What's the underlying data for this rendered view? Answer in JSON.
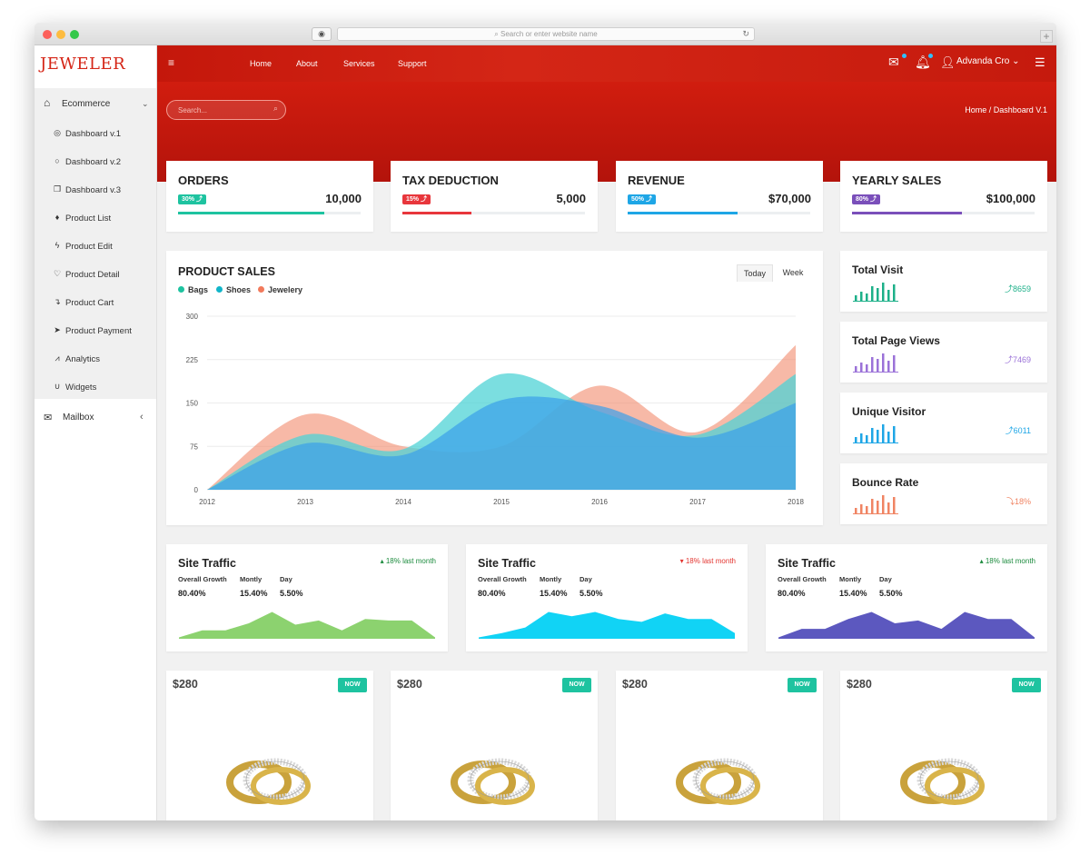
{
  "browser": {
    "url_placeholder": "Search or enter website name"
  },
  "brand": {
    "logo": "JEWELER",
    "accent": "#d42616"
  },
  "sidebar": {
    "group": {
      "label": "Ecommerce"
    },
    "items": [
      {
        "label": "Dashboard v.1",
        "icon": "target-icon"
      },
      {
        "label": "Dashboard v.2",
        "icon": "circle-icon"
      },
      {
        "label": "Dashboard v.3",
        "icon": "cube-icon"
      },
      {
        "label": "Product List",
        "icon": "diamond-icon"
      },
      {
        "label": "Product Edit",
        "icon": "bolt-icon"
      },
      {
        "label": "Product Detail",
        "icon": "heart-icon"
      },
      {
        "label": "Product Cart",
        "icon": "arrow-turn-icon"
      },
      {
        "label": "Product Payment",
        "icon": "send-icon"
      },
      {
        "label": "Analytics",
        "icon": "line-chart-icon"
      },
      {
        "label": "Widgets",
        "icon": "magnet-icon"
      }
    ],
    "mailbox": {
      "label": "Mailbox"
    }
  },
  "topnav": {
    "links": [
      "Home",
      "About",
      "Services",
      "Support"
    ],
    "user": "Advanda Cro"
  },
  "search": {
    "placeholder": "Search..."
  },
  "breadcrumb": "Home / Dashboard V.1",
  "stats": [
    {
      "title": "ORDERS",
      "badge": "30% ⤴",
      "value": "10,000",
      "color": "#1ec3a0",
      "progress": 0.8
    },
    {
      "title": "TAX DEDUCTION",
      "badge": "15% ⤴",
      "value": "5,000",
      "color": "#e8363c",
      "progress": 0.38
    },
    {
      "title": "REVENUE",
      "badge": "50% ⤴",
      "value": "$70,000",
      "color": "#1ea6e6",
      "progress": 0.6
    },
    {
      "title": "YEARLY SALES",
      "badge": "80% ⤴",
      "value": "$100,000",
      "color": "#7a4fba",
      "progress": 0.6
    }
  ],
  "product_sales": {
    "title": "PRODUCT SALES",
    "tabs": [
      "Today",
      "Week"
    ],
    "chart_data": {
      "type": "area",
      "categories": [
        "2012",
        "2013",
        "2014",
        "2015",
        "2016",
        "2017",
        "2018"
      ],
      "series": [
        {
          "name": "Bags",
          "color": "#4fd3d6",
          "values": [
            0,
            95,
            70,
            200,
            135,
            95,
            200
          ]
        },
        {
          "name": "Shoes",
          "color": "#3aa0ea",
          "values": [
            0,
            80,
            60,
            155,
            145,
            90,
            150
          ]
        },
        {
          "name": "Jewelery",
          "color": "#f28a6c",
          "values": [
            0,
            130,
            75,
            75,
            180,
            100,
            250
          ]
        }
      ],
      "yticks": [
        "0",
        "75",
        "150",
        "225",
        "300"
      ],
      "ylim": [
        0,
        300
      ]
    }
  },
  "mini_stats": [
    {
      "title": "Total Visit",
      "value": "⤴8659",
      "color": "#1db089",
      "bars": [
        0.3,
        0.5,
        0.4,
        0.8,
        0.7,
        1.0,
        0.6,
        0.9
      ]
    },
    {
      "title": "Total Page Views",
      "value": "⤴7469",
      "color": "#9b72d8",
      "bars": [
        0.3,
        0.5,
        0.4,
        0.8,
        0.7,
        1.0,
        0.6,
        0.9
      ]
    },
    {
      "title": "Unique Visitor",
      "value": "⤴6011",
      "color": "#1ea6e6",
      "bars": [
        0.3,
        0.5,
        0.4,
        0.8,
        0.7,
        1.0,
        0.6,
        0.9
      ]
    },
    {
      "title": "Bounce Rate",
      "value": "⤵18%",
      "color": "#f08463",
      "bars": [
        0.3,
        0.5,
        0.4,
        0.8,
        0.7,
        1.0,
        0.6,
        0.9
      ]
    }
  ],
  "traffic": [
    {
      "title": "Site Traffic",
      "trend": "▴ 18% last month",
      "trend_color": "#1a8a3c",
      "color": "#8cd26f",
      "labels": [
        "Overall Growth",
        "Montly",
        "Day"
      ],
      "values": [
        "80.40%",
        "15.40%",
        "5.50%"
      ],
      "points": [
        0.05,
        0.3,
        0.3,
        0.55,
        0.95,
        0.5,
        0.65,
        0.3,
        0.7,
        0.65,
        0.65,
        0.05
      ]
    },
    {
      "title": "Site Traffic",
      "trend": "▾ 18% last month",
      "trend_color": "#e3342f",
      "color": "#11d3f5",
      "labels": [
        "Overall Growth",
        "Montly",
        "Day"
      ],
      "values": [
        "80.40%",
        "15.40%",
        "5.50%"
      ],
      "points": [
        0.05,
        0.2,
        0.4,
        0.95,
        0.8,
        0.95,
        0.7,
        0.6,
        0.9,
        0.7,
        0.7,
        0.2
      ]
    },
    {
      "title": "Site Traffic",
      "trend": "▴ 18% last month",
      "trend_color": "#1a8a3c",
      "color": "#5c58bf",
      "labels": [
        "Overall Growth",
        "Montly",
        "Day"
      ],
      "values": [
        "80.40%",
        "15.40%",
        "5.50%"
      ],
      "points": [
        0.05,
        0.35,
        0.35,
        0.7,
        0.95,
        0.55,
        0.65,
        0.35,
        0.95,
        0.7,
        0.7,
        0.05
      ]
    }
  ],
  "products": [
    {
      "price": "$280",
      "button": "NOW"
    },
    {
      "price": "$280",
      "button": "NOW"
    },
    {
      "price": "$280",
      "button": "NOW"
    },
    {
      "price": "$280",
      "button": "NOW"
    }
  ]
}
